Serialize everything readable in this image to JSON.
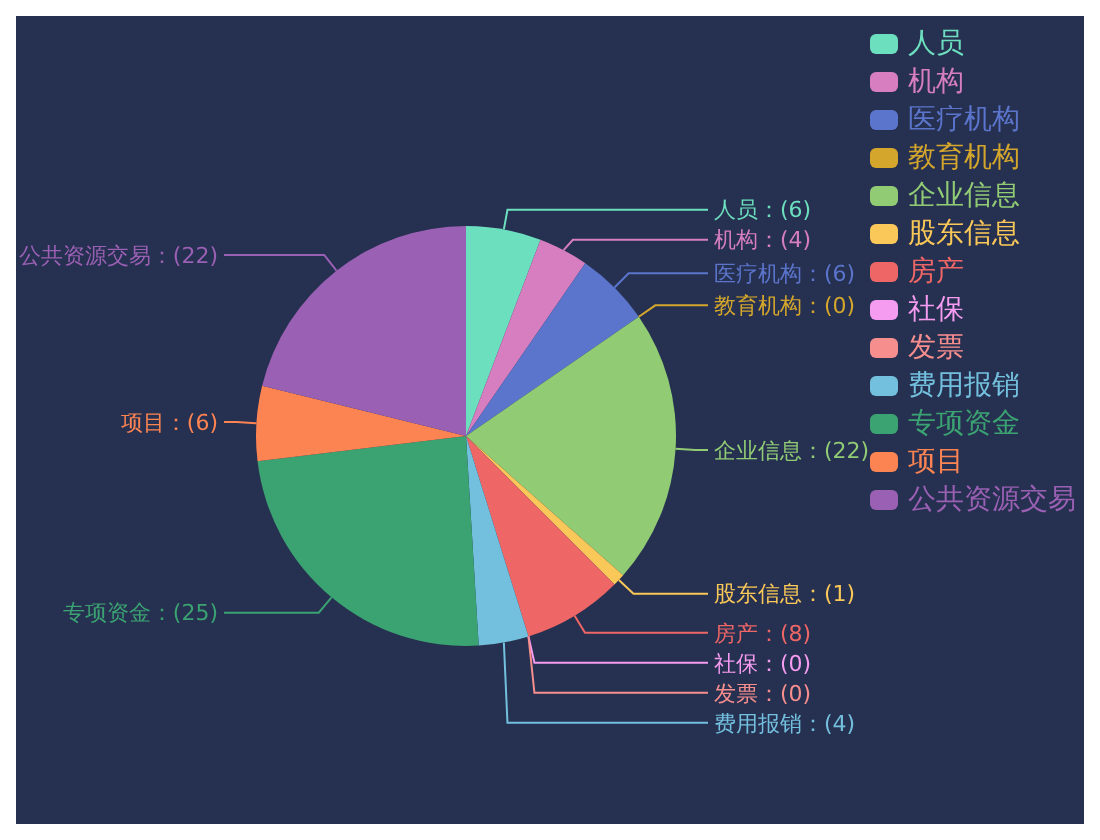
{
  "chart_data": {
    "type": "pie",
    "categories": [
      "人员",
      "机构",
      "医疗机构",
      "教育机构",
      "企业信息",
      "股东信息",
      "房产",
      "社保",
      "发票",
      "费用报销",
      "专项资金",
      "项目",
      "公共资源交易"
    ],
    "values": [
      6,
      4,
      6,
      0,
      22,
      1,
      8,
      0,
      0,
      4,
      25,
      6,
      22
    ],
    "value_labels": [
      "人员：(6)",
      "机构：(4)",
      "医疗机构：(6)",
      "教育机构：(0)",
      "企业信息：(22)",
      "股东信息：(1)",
      "房产：(8)",
      "社保：(0)",
      "发票：(0)",
      "费用报销：(4)",
      "专项资金：(25)",
      "项目：(6)",
      "公共资源交易：(22)"
    ],
    "colors": [
      "#6cdfbf",
      "#d67ec0",
      "#5b75cc",
      "#d4a72c",
      "#91cc75",
      "#fac858",
      "#ee6666",
      "#f59bf0",
      "#f78e8e",
      "#73c0de",
      "#3ba272",
      "#fc8452",
      "#9a60b4"
    ],
    "legend": "top right"
  }
}
